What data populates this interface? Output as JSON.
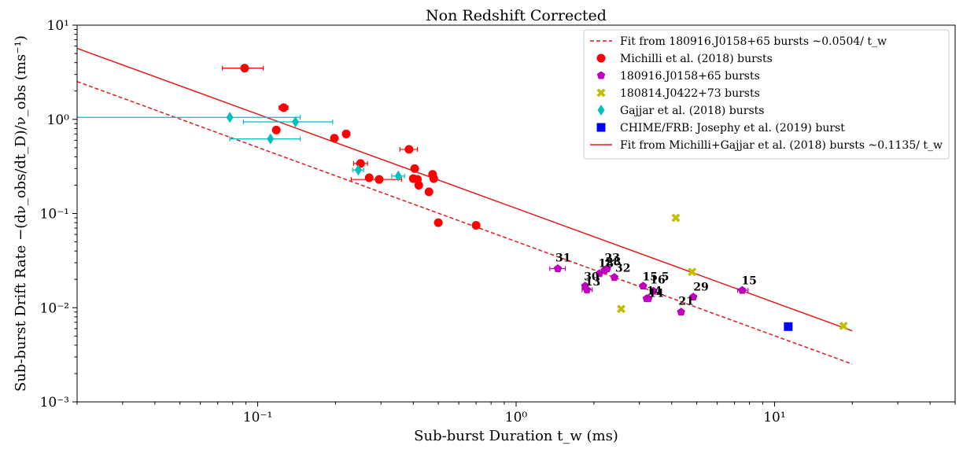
{
  "chart_data": {
    "type": "scatter",
    "title": "Non Redshift Corrected",
    "xlabel": "Sub-burst Duration t_w (ms)",
    "ylabel": "Sub-burst Drift Rate −(dν_obs/dt_D)/ν_obs (ms⁻¹)",
    "xscale": "log",
    "yscale": "log",
    "xlim": [
      0.02,
      50
    ],
    "ylim": [
      0.001,
      10
    ],
    "grid": false,
    "legend_position": "top-right",
    "x_tick_labels": [
      "10⁻¹",
      "10⁰",
      "10¹"
    ],
    "y_tick_labels": [
      "10⁻³",
      "10⁻²",
      "10⁻¹",
      "10⁰",
      "10¹"
    ],
    "fit_lines": [
      {
        "name": "Fit from 180916.J0158+65 bursts ~0.0504/ t_w",
        "coef": 0.0504,
        "x_range": [
          0.02,
          20
        ],
        "color": "#e41a1c",
        "style": "dashed"
      },
      {
        "name": "Fit from Michilli+Gajjar et al. (2018) bursts ~0.1135/ t_w",
        "coef": 0.1135,
        "x_range": [
          0.02,
          20
        ],
        "color": "#e41a1c",
        "style": "solid"
      }
    ],
    "series": [
      {
        "name": "Michilli et al. (2018) bursts",
        "marker": "circle",
        "color": "#ff0000",
        "points": [
          {
            "x": 0.089,
            "y": 3.5,
            "xerr": [
              0.073,
              0.105
            ]
          },
          {
            "x": 0.126,
            "y": 1.33,
            "xerr": [
              0.121,
              0.131
            ]
          },
          {
            "x": 0.118,
            "y": 0.77
          },
          {
            "x": 0.198,
            "y": 0.63
          },
          {
            "x": 0.22,
            "y": 0.7,
            "xerr": [
              0.214,
              0.226
            ]
          },
          {
            "x": 0.25,
            "y": 0.34,
            "xerr": [
              0.235,
              0.266
            ]
          },
          {
            "x": 0.27,
            "y": 0.24
          },
          {
            "x": 0.295,
            "y": 0.23,
            "xerr": [
              0.23,
              0.36
            ]
          },
          {
            "x": 0.385,
            "y": 0.48,
            "xerr": [
              0.355,
              0.415
            ]
          },
          {
            "x": 0.405,
            "y": 0.3
          },
          {
            "x": 0.4,
            "y": 0.235
          },
          {
            "x": 0.415,
            "y": 0.23
          },
          {
            "x": 0.42,
            "y": 0.2
          },
          {
            "x": 0.46,
            "y": 0.17
          },
          {
            "x": 0.475,
            "y": 0.26
          },
          {
            "x": 0.48,
            "y": 0.235
          },
          {
            "x": 0.5,
            "y": 0.08
          },
          {
            "x": 0.7,
            "y": 0.075
          }
        ]
      },
      {
        "name": "180916.J0158+65 bursts",
        "marker": "pentagon",
        "color": "#bf00bf",
        "points": [
          {
            "x": 1.45,
            "y": 0.026,
            "xerr": [
              1.35,
              1.55
            ]
          },
          {
            "x": 1.85,
            "y": 0.017
          },
          {
            "x": 1.88,
            "y": 0.0155,
            "xerr": [
              1.8,
              1.97
            ]
          },
          {
            "x": 2.1,
            "y": 0.023
          },
          {
            "x": 2.2,
            "y": 0.025
          },
          {
            "x": 2.25,
            "y": 0.026
          },
          {
            "x": 2.4,
            "y": 0.021
          },
          {
            "x": 3.1,
            "y": 0.017
          },
          {
            "x": 3.2,
            "y": 0.0125
          },
          {
            "x": 3.25,
            "y": 0.0125
          },
          {
            "x": 3.4,
            "y": 0.015
          },
          {
            "x": 4.35,
            "y": 0.009
          },
          {
            "x": 4.85,
            "y": 0.013
          },
          {
            "x": 7.5,
            "y": 0.0153,
            "xerr": [
              7.2,
              7.9
            ]
          }
        ]
      },
      {
        "name": "180814.J0422+73 bursts",
        "marker": "x",
        "color": "#bfbf00",
        "points": [
          {
            "x": 2.55,
            "y": 0.0097
          },
          {
            "x": 4.15,
            "y": 0.09
          },
          {
            "x": 4.8,
            "y": 0.024
          },
          {
            "x": 18.5,
            "y": 0.0064
          }
        ]
      },
      {
        "name": "Gajjar et al. (2018) bursts",
        "marker": "diamond",
        "color": "#00bfbf",
        "points": [
          {
            "x": 0.078,
            "y": 1.05,
            "xerr": [
              0.02,
              0.146
            ]
          },
          {
            "x": 0.14,
            "y": 0.94,
            "xerr": [
              0.088,
              0.195
            ]
          },
          {
            "x": 0.112,
            "y": 0.62,
            "xerr": [
              0.078,
              0.146
            ]
          },
          {
            "x": 0.245,
            "y": 0.29,
            "xerr": [
              0.233,
              0.257
            ]
          },
          {
            "x": 0.35,
            "y": 0.25,
            "xerr": [
              0.33,
              0.37
            ]
          }
        ]
      },
      {
        "name": "CHIME/FRB: Josephy et al. (2019) burst",
        "marker": "square",
        "color": "#0000ff",
        "points": [
          {
            "x": 11.3,
            "y": 0.0063
          }
        ]
      }
    ],
    "annotations": [
      {
        "text": "31",
        "x": 1.42,
        "y": 0.031
      },
      {
        "text": "23",
        "x": 2.2,
        "y": 0.031
      },
      {
        "text": "18",
        "x": 2.08,
        "y": 0.027
      },
      {
        "text": "28",
        "x": 2.22,
        "y": 0.028
      },
      {
        "text": "32",
        "x": 2.42,
        "y": 0.024
      },
      {
        "text": "30",
        "x": 1.83,
        "y": 0.0195
      },
      {
        "text": "13",
        "x": 1.85,
        "y": 0.0172
      },
      {
        "text": "15.5",
        "x": 3.08,
        "y": 0.0195
      },
      {
        "text": "16",
        "x": 3.3,
        "y": 0.018
      },
      {
        "text": "14",
        "x": 3.2,
        "y": 0.0138
      },
      {
        "text": "14",
        "x": 3.25,
        "y": 0.013
      },
      {
        "text": "15",
        "x": 7.45,
        "y": 0.0178
      },
      {
        "text": "29",
        "x": 4.85,
        "y": 0.0152
      },
      {
        "text": "21",
        "x": 4.25,
        "y": 0.0107
      }
    ]
  }
}
